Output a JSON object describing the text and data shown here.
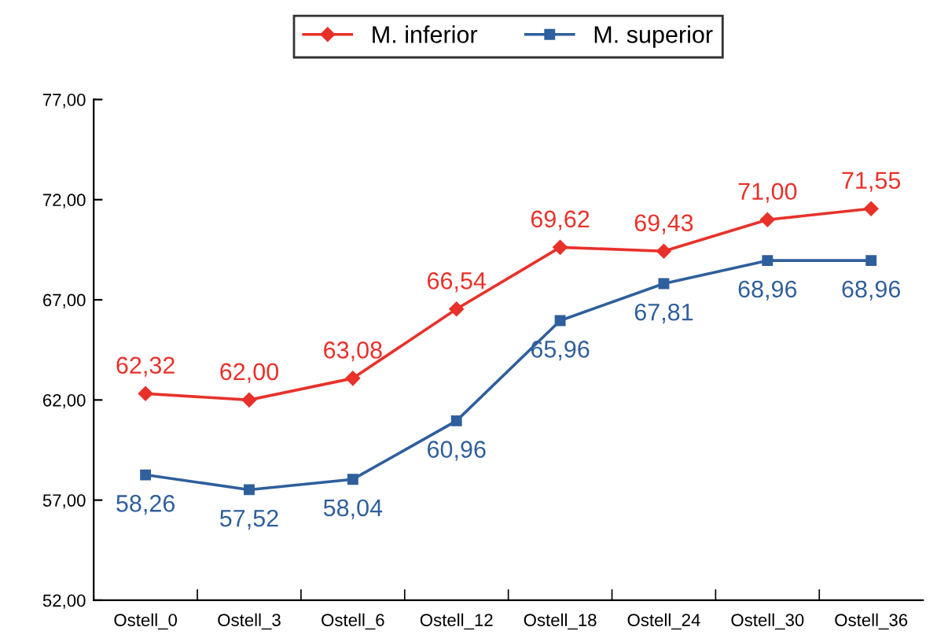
{
  "chart_data": {
    "type": "line",
    "categories": [
      "Ostell_0",
      "Ostell_3",
      "Ostell_6",
      "Ostell_12",
      "Ostell_18",
      "Ostell_24",
      "Ostell_30",
      "Ostell_36"
    ],
    "series": [
      {
        "name": "M. inferior",
        "color": "#e8312a",
        "marker": "diamond",
        "values": [
          62.32,
          62.0,
          63.08,
          66.54,
          69.62,
          69.43,
          71.0,
          71.55
        ],
        "value_labels": [
          "62,32",
          "62,00",
          "63,08",
          "66,54",
          "69,62",
          "69,43",
          "71,00",
          "71,55"
        ]
      },
      {
        "name": "M. superior",
        "color": "#2f5f9c",
        "marker": "square",
        "values": [
          58.26,
          57.52,
          58.04,
          60.96,
          65.96,
          67.81,
          68.96,
          68.96
        ],
        "value_labels": [
          "58,26",
          "57,52",
          "58,04",
          "60,96",
          "65,96",
          "67,81",
          "68,96",
          "68,96"
        ]
      }
    ],
    "ylim": [
      52,
      77
    ],
    "yticks": [
      {
        "value": 52,
        "label": "52,00"
      },
      {
        "value": 57,
        "label": "57,00"
      },
      {
        "value": 62,
        "label": "62,00"
      },
      {
        "value": 67,
        "label": "67,00"
      },
      {
        "value": 72,
        "label": "72,00"
      },
      {
        "value": 77,
        "label": "77,00"
      }
    ],
    "grid": false,
    "legend": "top",
    "line_style": "solid"
  }
}
